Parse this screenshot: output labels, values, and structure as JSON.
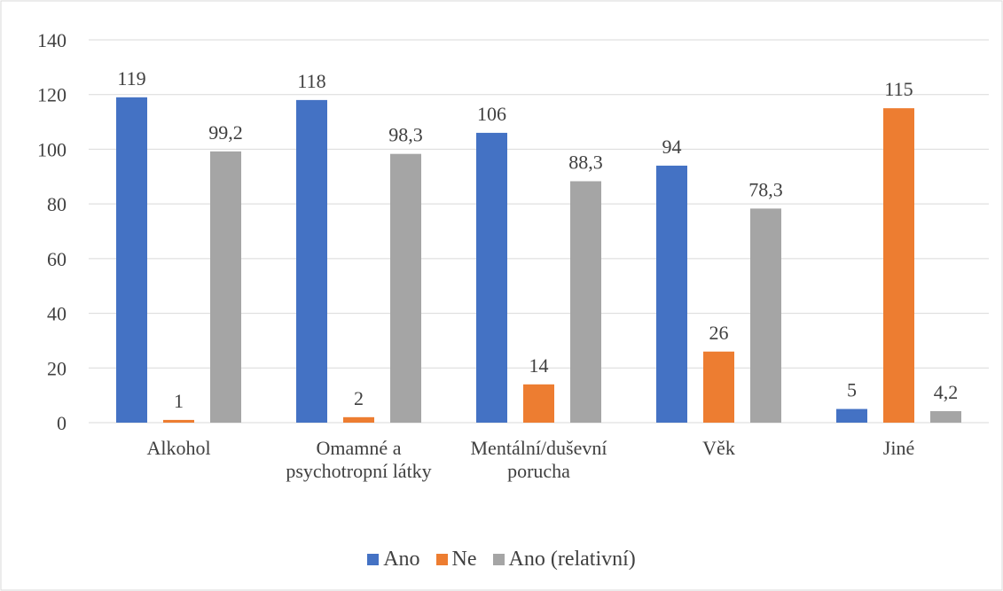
{
  "chart_data": {
    "type": "bar",
    "categories": [
      "Alkohol",
      "Omamné a psychotropní látky",
      "Mentální/duševní porucha",
      "Věk",
      "Jiné"
    ],
    "series": [
      {
        "name": "Ano",
        "color": "#4472c4",
        "values": [
          119,
          118,
          106,
          94,
          5
        ]
      },
      {
        "name": "Ne",
        "color": "#ed7d31",
        "values": [
          1,
          2,
          14,
          26,
          115
        ]
      },
      {
        "name": "Ano (relativní)",
        "color": "#a5a5a5",
        "values": [
          99.2,
          98.3,
          88.3,
          78.3,
          4.2
        ],
        "value_labels": [
          "99,2",
          "98,3",
          "88,3",
          "78,3",
          "4,2"
        ]
      }
    ],
    "ylim": [
      0,
      140
    ],
    "yticks": [
      0,
      20,
      40,
      60,
      80,
      100,
      120,
      140
    ],
    "grid": true,
    "legend": "bottom"
  }
}
